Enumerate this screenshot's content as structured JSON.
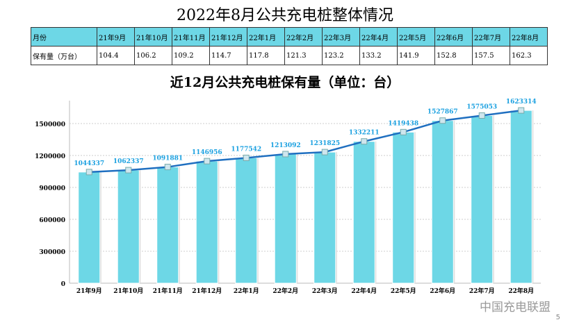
{
  "title": "2022年8月公共充电桩整体情况",
  "table": {
    "row_header": "月份",
    "value_header": "保有量（万台）",
    "months": [
      "21年9月",
      "21年10月",
      "21年11月",
      "21年12月",
      "22年1月",
      "22年2月",
      "22年3月",
      "22年4月",
      "22年5月",
      "22年6月",
      "22年7月",
      "22年8月"
    ],
    "values": [
      "104.4",
      "106.2",
      "109.2",
      "114.7",
      "117.8",
      "121.3",
      "123.2",
      "133.2",
      "141.9",
      "152.8",
      "157.5",
      "162.3"
    ]
  },
  "chart_data": {
    "type": "bar",
    "title": "近12月公共充电桩保有量（单位：台）",
    "categories": [
      "21年9月",
      "21年10月",
      "21年11月",
      "21年12月",
      "22年1月",
      "22年2月",
      "22年3月",
      "22年4月",
      "22年5月",
      "22年6月",
      "22年7月",
      "22年8月"
    ],
    "values": [
      1044337,
      1062337,
      1091881,
      1146956,
      1177542,
      1213092,
      1231825,
      1332211,
      1419438,
      1527867,
      1575053,
      1623314
    ],
    "overlay": "line",
    "ylim": [
      0,
      1500000
    ],
    "yticks": [
      0,
      300000,
      600000,
      900000,
      1200000,
      1500000
    ],
    "grid": true,
    "colors": {
      "bar": "#6dd7e6",
      "line": "#1f6fc0",
      "label": "#1aa0e0"
    }
  },
  "watermark": "中国充电联盟",
  "page_number": "5"
}
